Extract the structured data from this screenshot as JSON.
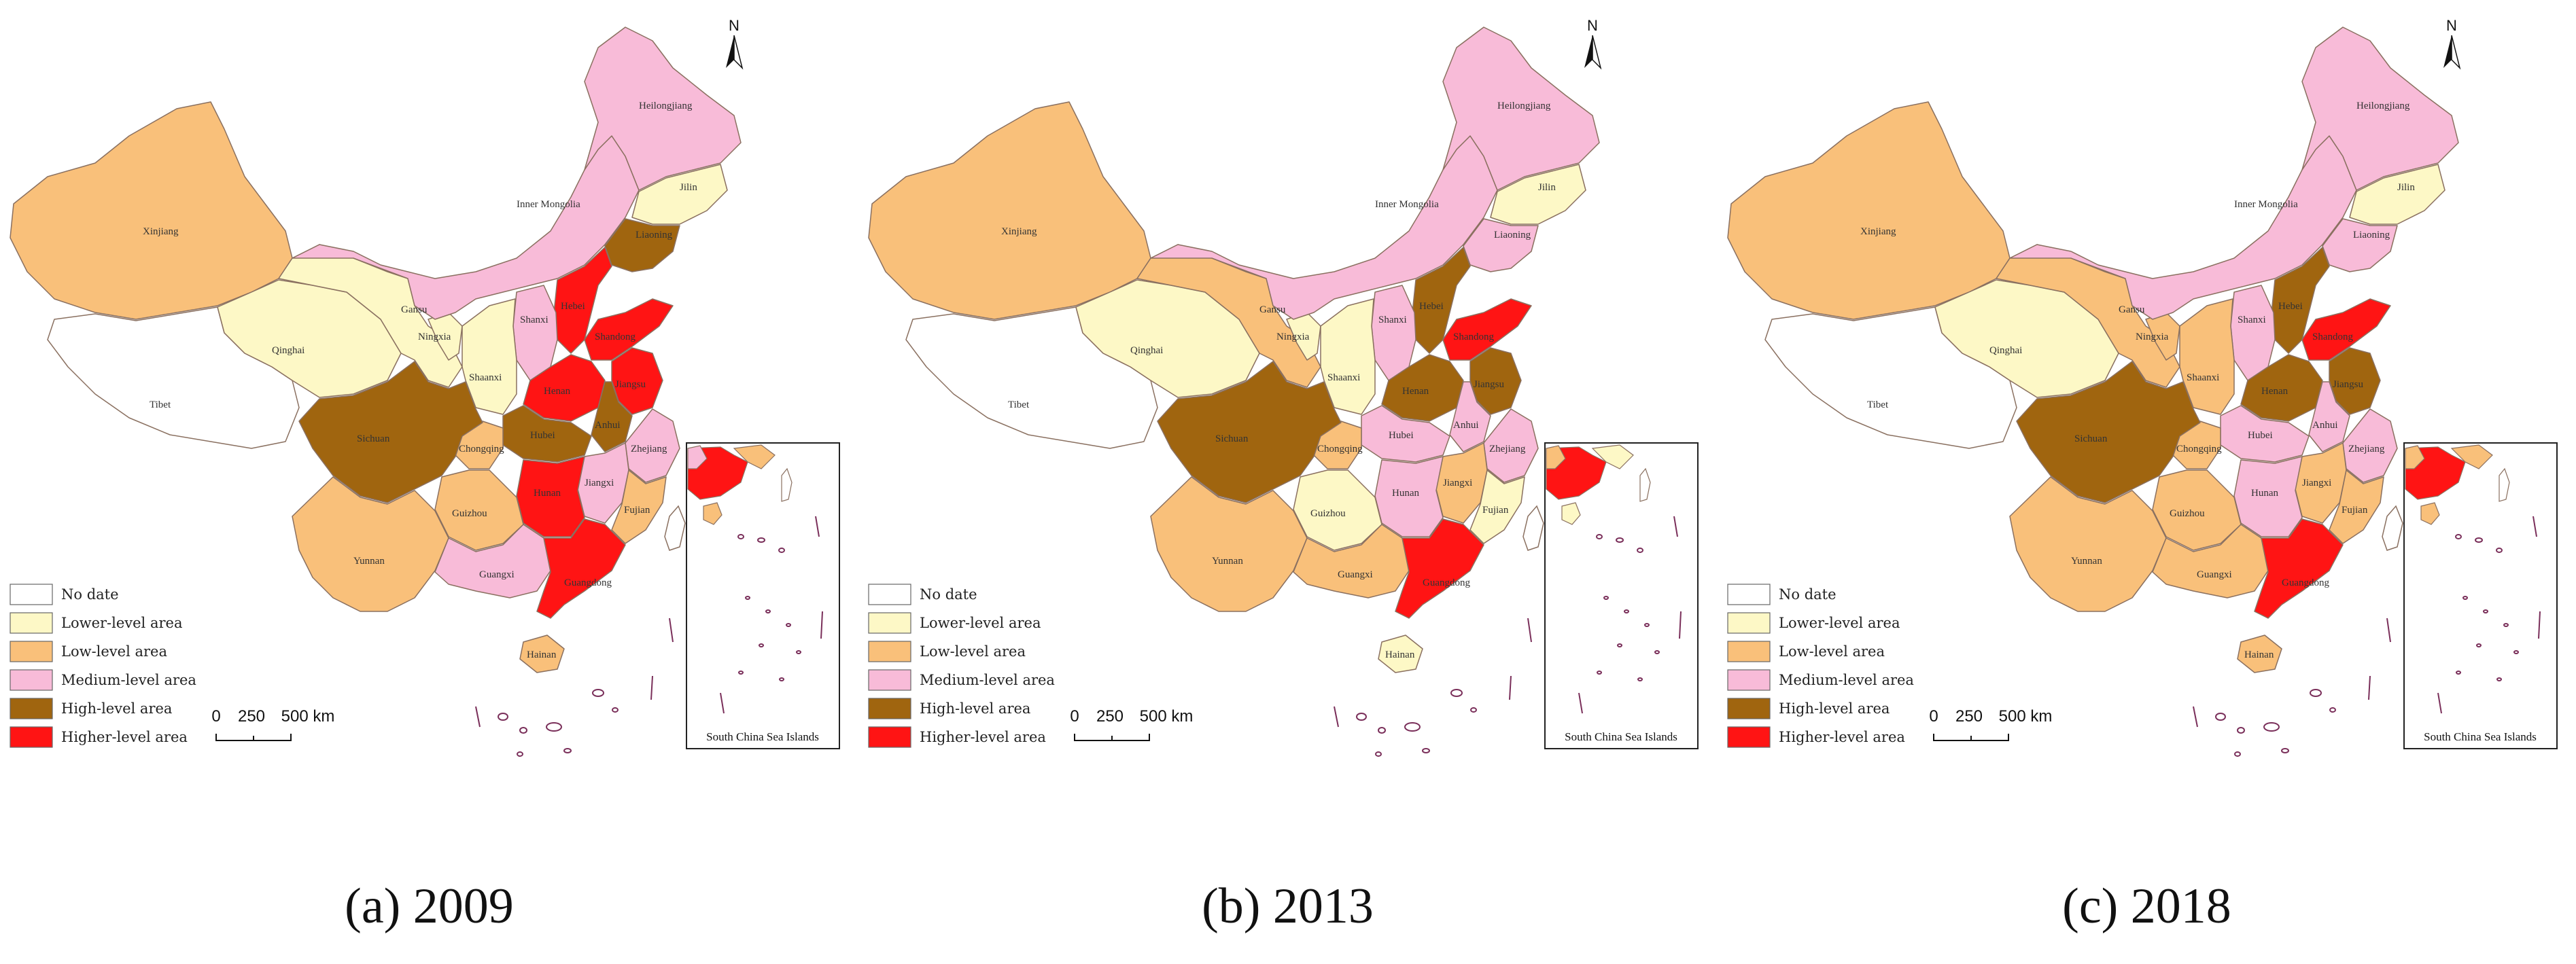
{
  "colors": {
    "no_data": "#ffffff",
    "lower": "#fdf8c6",
    "low": "#f9c07a",
    "medium": "#f8bbd8",
    "high": "#a0650f",
    "higher": "#ff1414",
    "border": "#8a7060",
    "sea_islands": "#7a2f5a"
  },
  "legend": {
    "no_data": "No date",
    "lower": "Lower-level area",
    "low": "Low-level area",
    "medium": "Medium-level area",
    "high": "High-level area",
    "higher": "Higher-level area"
  },
  "scale": {
    "zero": "0",
    "mid": "250",
    "end": "500 km"
  },
  "north": "N",
  "inset_title": "South China Sea Islands",
  "province_names": {
    "xinjiang": "Xinjiang",
    "tibet": "Tibet",
    "qinghai": "Qinghai",
    "gansu": "Gansu",
    "ningxia": "Ningxia",
    "shaanxi": "Shaanxi",
    "shanxi": "Shanxi",
    "inner_mongolia": "Inner Mongolia",
    "heilongjiang": "Heilongjiang",
    "jilin": "Jilin",
    "liaoning": "Liaoning",
    "hebei": "Hebei",
    "sichuan": "Sichuan",
    "yunnan": "Yunnan",
    "guizhou": "Guizhou",
    "guangxi": "Guangxi",
    "guangdong": "Guangdong",
    "hainan": "Hainan",
    "hunan": "Hunan",
    "hubei": "Hubei",
    "henan": "Henan",
    "anhui": "Anhui",
    "jiangxi": "Jiangxi",
    "fujian": "Fujian",
    "zhejiang": "Zhejiang",
    "jiangsu": "Jiangsu",
    "shandong": "Shandong",
    "chongqing": "Chongqing"
  },
  "maps": [
    {
      "caption": "(a) 2009",
      "levels": {
        "xinjiang": "low",
        "tibet": "no_data",
        "qinghai": "lower",
        "gansu": "lower",
        "ningxia": "lower",
        "shaanxi": "lower",
        "shanxi": "medium",
        "inner_mongolia": "medium",
        "heilongjiang": "medium",
        "jilin": "lower",
        "liaoning": "high",
        "hebei": "higher",
        "sichuan": "high",
        "yunnan": "low",
        "guizhou": "low",
        "guangxi": "medium",
        "guangdong": "higher",
        "hainan": "low",
        "hunan": "higher",
        "hubei": "high",
        "henan": "higher",
        "anhui": "high",
        "jiangxi": "medium",
        "fujian": "low",
        "zhejiang": "medium",
        "jiangsu": "higher",
        "shandong": "higher",
        "chongqing": "low"
      }
    },
    {
      "caption": "(b) 2013",
      "levels": {
        "xinjiang": "low",
        "tibet": "no_data",
        "qinghai": "lower",
        "gansu": "low",
        "ningxia": "lower",
        "shaanxi": "lower",
        "shanxi": "medium",
        "inner_mongolia": "medium",
        "heilongjiang": "medium",
        "jilin": "lower",
        "liaoning": "medium",
        "hebei": "high",
        "sichuan": "high",
        "yunnan": "low",
        "guizhou": "lower",
        "guangxi": "low",
        "guangdong": "higher",
        "hainan": "lower",
        "hunan": "medium",
        "hubei": "medium",
        "henan": "high",
        "anhui": "medium",
        "jiangxi": "low",
        "fujian": "lower",
        "zhejiang": "medium",
        "jiangsu": "high",
        "shandong": "higher",
        "chongqing": "low"
      }
    },
    {
      "caption": "(c) 2018",
      "levels": {
        "xinjiang": "low",
        "tibet": "no_data",
        "qinghai": "lower",
        "gansu": "low",
        "ningxia": "low",
        "shaanxi": "low",
        "shanxi": "medium",
        "inner_mongolia": "medium",
        "heilongjiang": "medium",
        "jilin": "lower",
        "liaoning": "medium",
        "hebei": "high",
        "sichuan": "high",
        "yunnan": "low",
        "guizhou": "low",
        "guangxi": "low",
        "guangdong": "higher",
        "hainan": "low",
        "hunan": "medium",
        "hubei": "medium",
        "henan": "high",
        "anhui": "medium",
        "jiangxi": "low",
        "fujian": "low",
        "zhejiang": "medium",
        "jiangsu": "high",
        "shandong": "higher",
        "chongqing": "low"
      }
    }
  ]
}
